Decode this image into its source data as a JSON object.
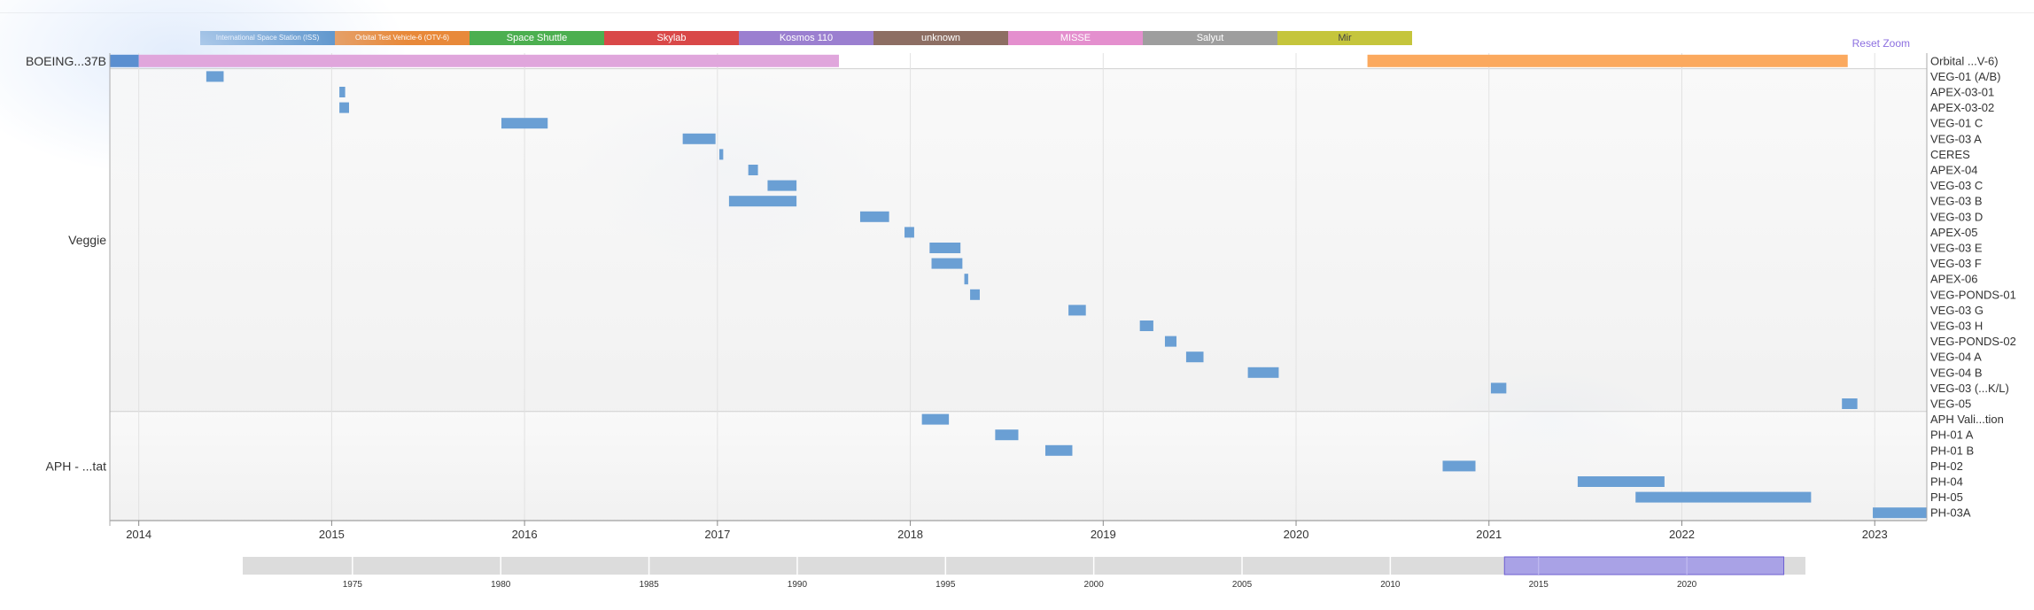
{
  "legend": [
    {
      "label": "International Space Station (ISS)",
      "color": "#3a7ebf",
      "small": true
    },
    {
      "label": "Orbital Test Vehicle-6 (OTV-6)",
      "color": "#e8893a",
      "small": true
    },
    {
      "label": "Space Shuttle",
      "color": "#4caf50"
    },
    {
      "label": "Skylab",
      "color": "#d94848"
    },
    {
      "label": "Kosmos 110",
      "color": "#9b7fd0"
    },
    {
      "label": "unknown",
      "color": "#8d6e63"
    },
    {
      "label": "MISSE",
      "color": "#e48fce"
    },
    {
      "label": "Salyut",
      "color": "#9e9e9e"
    },
    {
      "label": "Mir",
      "color": "#c5c53c",
      "dark": true
    }
  ],
  "reset_zoom": "Reset Zoom",
  "chart_data": {
    "type": "timeline",
    "x_range": [
      2013.85,
      2023.27
    ],
    "x_ticks": [
      "2014",
      "2015",
      "2016",
      "2017",
      "2018",
      "2019",
      "2020",
      "2021",
      "2022",
      "2023"
    ],
    "groups": [
      {
        "label": "BOEING...37B",
        "rows": [
          {
            "label": "Orbital ...V-6)",
            "bars": [
              {
                "start": 2013.85,
                "end": 2014.0,
                "color": "#5b8fd0"
              },
              {
                "start": 2014.0,
                "end": 2017.63,
                "color": "#e0a6dc"
              },
              {
                "start": 2020.37,
                "end": 2022.86,
                "color": "#fba95e"
              }
            ]
          }
        ]
      },
      {
        "label": "Veggie",
        "rows": [
          {
            "label": "VEG-01 (A/B)",
            "bars": [
              {
                "start": 2014.35,
                "end": 2014.44
              }
            ]
          },
          {
            "label": "APEX-03-01",
            "bars": [
              {
                "start": 2015.04,
                "end": 2015.07
              }
            ]
          },
          {
            "label": "APEX-03-02",
            "bars": [
              {
                "start": 2015.04,
                "end": 2015.09
              }
            ]
          },
          {
            "label": "VEG-01 C",
            "bars": [
              {
                "start": 2015.88,
                "end": 2016.12
              }
            ]
          },
          {
            "label": "VEG-03 A",
            "bars": [
              {
                "start": 2016.82,
                "end": 2016.99
              }
            ]
          },
          {
            "label": "CERES",
            "bars": [
              {
                "start": 2017.01,
                "end": 2017.03
              }
            ]
          },
          {
            "label": "APEX-04",
            "bars": [
              {
                "start": 2017.16,
                "end": 2017.21
              }
            ]
          },
          {
            "label": "VEG-03 C",
            "bars": [
              {
                "start": 2017.26,
                "end": 2017.41
              }
            ]
          },
          {
            "label": "VEG-03 B",
            "bars": [
              {
                "start": 2017.06,
                "end": 2017.41
              }
            ]
          },
          {
            "label": "VEG-03 D",
            "bars": [
              {
                "start": 2017.74,
                "end": 2017.89
              }
            ]
          },
          {
            "label": "APEX-05",
            "bars": [
              {
                "start": 2017.97,
                "end": 2018.02
              }
            ]
          },
          {
            "label": "VEG-03 E",
            "bars": [
              {
                "start": 2018.1,
                "end": 2018.26
              }
            ]
          },
          {
            "label": "VEG-03 F",
            "bars": [
              {
                "start": 2018.11,
                "end": 2018.27
              }
            ]
          },
          {
            "label": "APEX-06",
            "bars": [
              {
                "start": 2018.28,
                "end": 2018.3
              }
            ]
          },
          {
            "label": "VEG-PONDS-01",
            "bars": [
              {
                "start": 2018.31,
                "end": 2018.36
              }
            ]
          },
          {
            "label": "VEG-03 G",
            "bars": [
              {
                "start": 2018.82,
                "end": 2018.91
              }
            ]
          },
          {
            "label": "VEG-03 H",
            "bars": [
              {
                "start": 2019.19,
                "end": 2019.26
              }
            ]
          },
          {
            "label": "VEG-PONDS-02",
            "bars": [
              {
                "start": 2019.32,
                "end": 2019.38
              }
            ]
          },
          {
            "label": "VEG-04 A",
            "bars": [
              {
                "start": 2019.43,
                "end": 2019.52
              }
            ]
          },
          {
            "label": "VEG-04 B",
            "bars": [
              {
                "start": 2019.75,
                "end": 2019.91
              }
            ]
          },
          {
            "label": "VEG-03 (...K/L)",
            "bars": [
              {
                "start": 2021.01,
                "end": 2021.09
              }
            ]
          },
          {
            "label": "VEG-05",
            "bars": [
              {
                "start": 2022.83,
                "end": 2022.91
              }
            ]
          }
        ]
      },
      {
        "label": "APH - ...tat",
        "rows": [
          {
            "label": "APH Vali...tion",
            "bars": [
              {
                "start": 2018.06,
                "end": 2018.2
              }
            ]
          },
          {
            "label": "PH-01 A",
            "bars": [
              {
                "start": 2018.44,
                "end": 2018.56
              }
            ]
          },
          {
            "label": "PH-01 B",
            "bars": [
              {
                "start": 2018.7,
                "end": 2018.84
              }
            ]
          },
          {
            "label": "PH-02",
            "bars": [
              {
                "start": 2020.76,
                "end": 2020.93
              }
            ]
          },
          {
            "label": "PH-04",
            "bars": [
              {
                "start": 2021.46,
                "end": 2021.91
              }
            ]
          },
          {
            "label": "PH-05",
            "bars": [
              {
                "start": 2021.76,
                "end": 2022.67
              }
            ]
          },
          {
            "label": "PH-03A",
            "bars": [
              {
                "start": 2022.99,
                "end": 2023.27
              }
            ]
          }
        ]
      }
    ],
    "navigator": {
      "ticks": [
        "1975",
        "1980",
        "1985",
        "1990",
        "1995",
        "2000",
        "2005",
        "2010",
        "2015",
        "2020"
      ],
      "range": [
        1971.3,
        2024.0
      ],
      "selected": [
        2013.85,
        2023.27
      ]
    }
  }
}
